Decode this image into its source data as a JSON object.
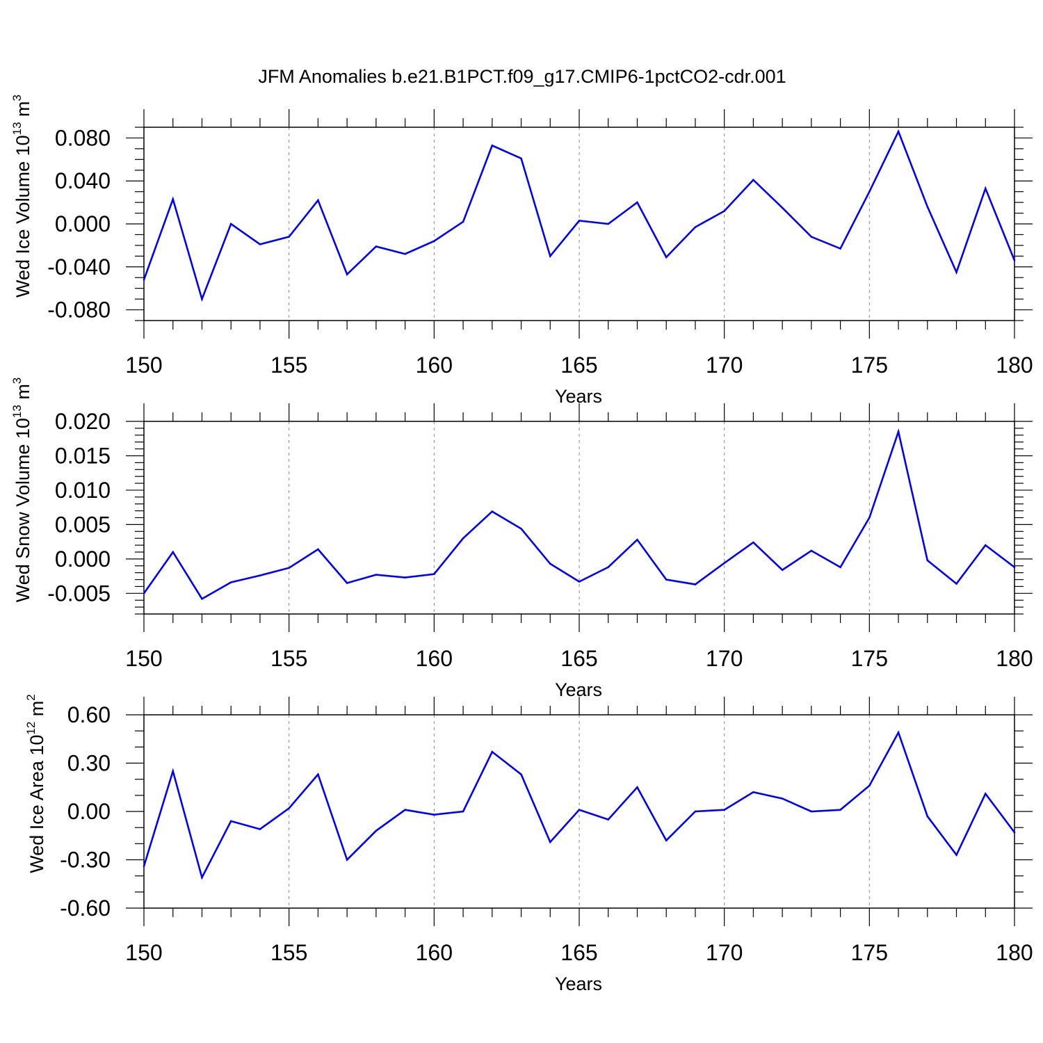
{
  "title": "JFM Anomalies b.e21.B1PCT.f09_g17.CMIP6-1pctCO2-cdr.001",
  "colors": {
    "line": "#0000ff",
    "axis": "#000000",
    "grid": "#888888"
  },
  "chart_data": [
    {
      "type": "line",
      "ylabel": {
        "text": "Wed Ice Volume 10",
        "exponent": "13",
        "unit": " m",
        "unit_exponent": "3"
      },
      "xlabel": "Years",
      "xlim": [
        150,
        180
      ],
      "ylim": [
        -0.09,
        0.09
      ],
      "xticks": [
        150,
        155,
        160,
        165,
        170,
        175,
        180
      ],
      "xtick_labels": [
        "150",
        "155",
        "160",
        "165",
        "170",
        "175",
        "180"
      ],
      "yticks": [
        0.08,
        0.04,
        0.0,
        -0.04,
        -0.08
      ],
      "ytick_labels": [
        "0.080",
        "0.040",
        "0.000",
        "-0.040",
        "-0.080"
      ],
      "y_minor_step": 0.01,
      "grid": "vertical dashed at major x ticks",
      "series": [
        {
          "name": "Wed Ice Volume",
          "x": [
            150,
            151,
            152,
            153,
            154,
            155,
            156,
            157,
            158,
            159,
            160,
            161,
            162,
            163,
            164,
            165,
            166,
            167,
            168,
            169,
            170,
            171,
            172,
            173,
            174,
            175,
            176,
            177,
            178,
            179,
            180
          ],
          "values": [
            -0.052,
            0.023,
            -0.07,
            0.0,
            -0.019,
            -0.012,
            0.022,
            -0.047,
            -0.021,
            -0.028,
            -0.016,
            0.002,
            0.073,
            0.061,
            -0.03,
            0.003,
            0.0,
            0.02,
            -0.031,
            -0.003,
            0.012,
            0.041,
            0.015,
            -0.012,
            -0.023,
            0.03,
            0.086,
            0.016,
            -0.045,
            0.033,
            -0.034
          ]
        }
      ]
    },
    {
      "type": "line",
      "ylabel": {
        "text": "Wed Snow Volume 10",
        "exponent": "13",
        "unit": " m",
        "unit_exponent": "3"
      },
      "xlabel": "Years",
      "xlim": [
        150,
        180
      ],
      "ylim": [
        -0.008,
        0.02
      ],
      "xticks": [
        150,
        155,
        160,
        165,
        170,
        175,
        180
      ],
      "xtick_labels": [
        "150",
        "155",
        "160",
        "165",
        "170",
        "175",
        "180"
      ],
      "yticks": [
        0.02,
        0.015,
        0.01,
        0.005,
        0.0,
        -0.005
      ],
      "ytick_labels": [
        "0.020",
        "0.015",
        "0.010",
        "0.005",
        "0.000",
        "-0.005"
      ],
      "y_minor_step": 0.001,
      "grid": "vertical dashed at major x ticks",
      "series": [
        {
          "name": "Wed Snow Volume",
          "x": [
            150,
            151,
            152,
            153,
            154,
            155,
            156,
            157,
            158,
            159,
            160,
            161,
            162,
            163,
            164,
            165,
            166,
            167,
            168,
            169,
            170,
            171,
            172,
            173,
            174,
            175,
            176,
            177,
            178,
            179,
            180
          ],
          "values": [
            -0.005,
            0.001,
            -0.0058,
            -0.0034,
            -0.0024,
            -0.0013,
            0.0014,
            -0.0035,
            -0.0023,
            -0.0027,
            -0.0022,
            0.003,
            0.0069,
            0.0044,
            -0.0007,
            -0.0033,
            -0.0012,
            0.0028,
            -0.003,
            -0.0037,
            -0.0006,
            0.0024,
            -0.0016,
            0.0012,
            -0.0012,
            0.006,
            0.0185,
            -0.0002,
            -0.0036,
            0.002,
            -0.0012
          ]
        }
      ]
    },
    {
      "type": "line",
      "ylabel": {
        "text": "Wed Ice Area 10",
        "exponent": "12",
        "unit": " m",
        "unit_exponent": "2"
      },
      "xlabel": "Years",
      "xlim": [
        150,
        180
      ],
      "ylim": [
        -0.6,
        0.6
      ],
      "xticks": [
        150,
        155,
        160,
        165,
        170,
        175,
        180
      ],
      "xtick_labels": [
        "150",
        "155",
        "160",
        "165",
        "170",
        "175",
        "180"
      ],
      "yticks": [
        0.6,
        0.3,
        0.0,
        -0.3,
        -0.6
      ],
      "ytick_labels": [
        "0.60",
        "0.30",
        "0.00",
        "-0.30",
        "-0.60"
      ],
      "y_minor_step": 0.1,
      "grid": "vertical dashed at major x ticks",
      "series": [
        {
          "name": "Wed Ice Area",
          "x": [
            150,
            151,
            152,
            153,
            154,
            155,
            156,
            157,
            158,
            159,
            160,
            161,
            162,
            163,
            164,
            165,
            166,
            167,
            168,
            169,
            170,
            171,
            172,
            173,
            174,
            175,
            176,
            177,
            178,
            179,
            180
          ],
          "values": [
            -0.34,
            0.25,
            -0.41,
            -0.06,
            -0.11,
            0.02,
            0.23,
            -0.3,
            -0.12,
            0.01,
            -0.02,
            0.0,
            0.37,
            0.23,
            -0.19,
            0.01,
            -0.05,
            0.15,
            -0.18,
            0.0,
            0.01,
            0.12,
            0.08,
            0.0,
            0.01,
            0.16,
            0.49,
            -0.03,
            -0.27,
            0.11,
            -0.13
          ]
        }
      ]
    }
  ]
}
